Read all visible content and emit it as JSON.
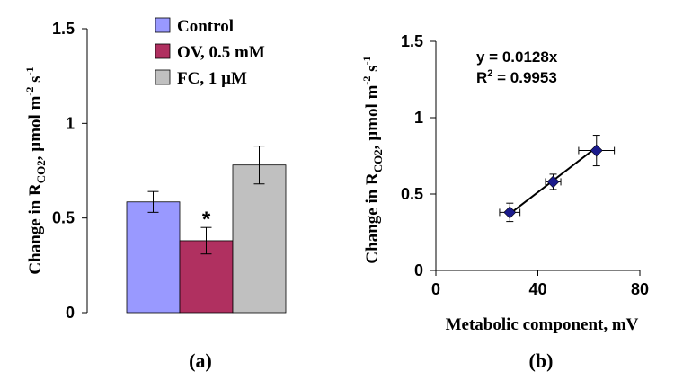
{
  "chart_data": [
    {
      "type": "bar",
      "panel_label": "(a)",
      "ylabel": {
        "main": "Change in R",
        "sub": "CO2",
        "rest": ", µmol m",
        "sup1": "-2",
        "mid": " s",
        "sup2": "-1"
      },
      "ylim": [
        0,
        1.5
      ],
      "yticks": [
        "0",
        "0.5",
        "1",
        "1.5"
      ],
      "ytick_values": [
        0,
        0.5,
        1,
        1.5
      ],
      "series": [
        {
          "name": "Control",
          "value": 0.585,
          "error": 0.055,
          "color": "#9999ff",
          "annotation": ""
        },
        {
          "name": "OV, 0.5 mM",
          "value": 0.38,
          "error": 0.07,
          "color": "#b03060",
          "annotation": "*"
        },
        {
          "name": "FC, 1 µM",
          "value": 0.78,
          "error": 0.1,
          "color": "#c0c0c0",
          "annotation": ""
        }
      ],
      "legend_position": "top"
    },
    {
      "type": "scatter",
      "panel_label": "(b)",
      "xlabel": "Metabolic component, mV",
      "ylabel": {
        "main": "Change in R",
        "sub": "CO2",
        "rest": ", µmol m",
        "sup1": "-2",
        "mid": " s",
        "sup2": "-1"
      },
      "xlim": [
        0,
        80
      ],
      "ylim": [
        0,
        1.5
      ],
      "xticks": [
        "0",
        "40",
        "80"
      ],
      "xtick_values": [
        0,
        40,
        80
      ],
      "yticks": [
        "0",
        "0.5",
        "1",
        "1.5"
      ],
      "ytick_values": [
        0,
        0.5,
        1,
        1.5
      ],
      "points": [
        {
          "x": 29,
          "y": 0.38,
          "xerr": 4,
          "yerr": 0.06
        },
        {
          "x": 46,
          "y": 0.58,
          "xerr": 3,
          "yerr": 0.05
        },
        {
          "x": 63,
          "y": 0.785,
          "xerr": 7,
          "yerr": 0.1
        }
      ],
      "point_color": "#1a1a8c",
      "fit": {
        "slope": 0.0128,
        "equation": "y = 0.0128x",
        "r2_label": "R",
        "r2_sup": "2",
        "r2_value": " = 0.9953"
      }
    }
  ]
}
